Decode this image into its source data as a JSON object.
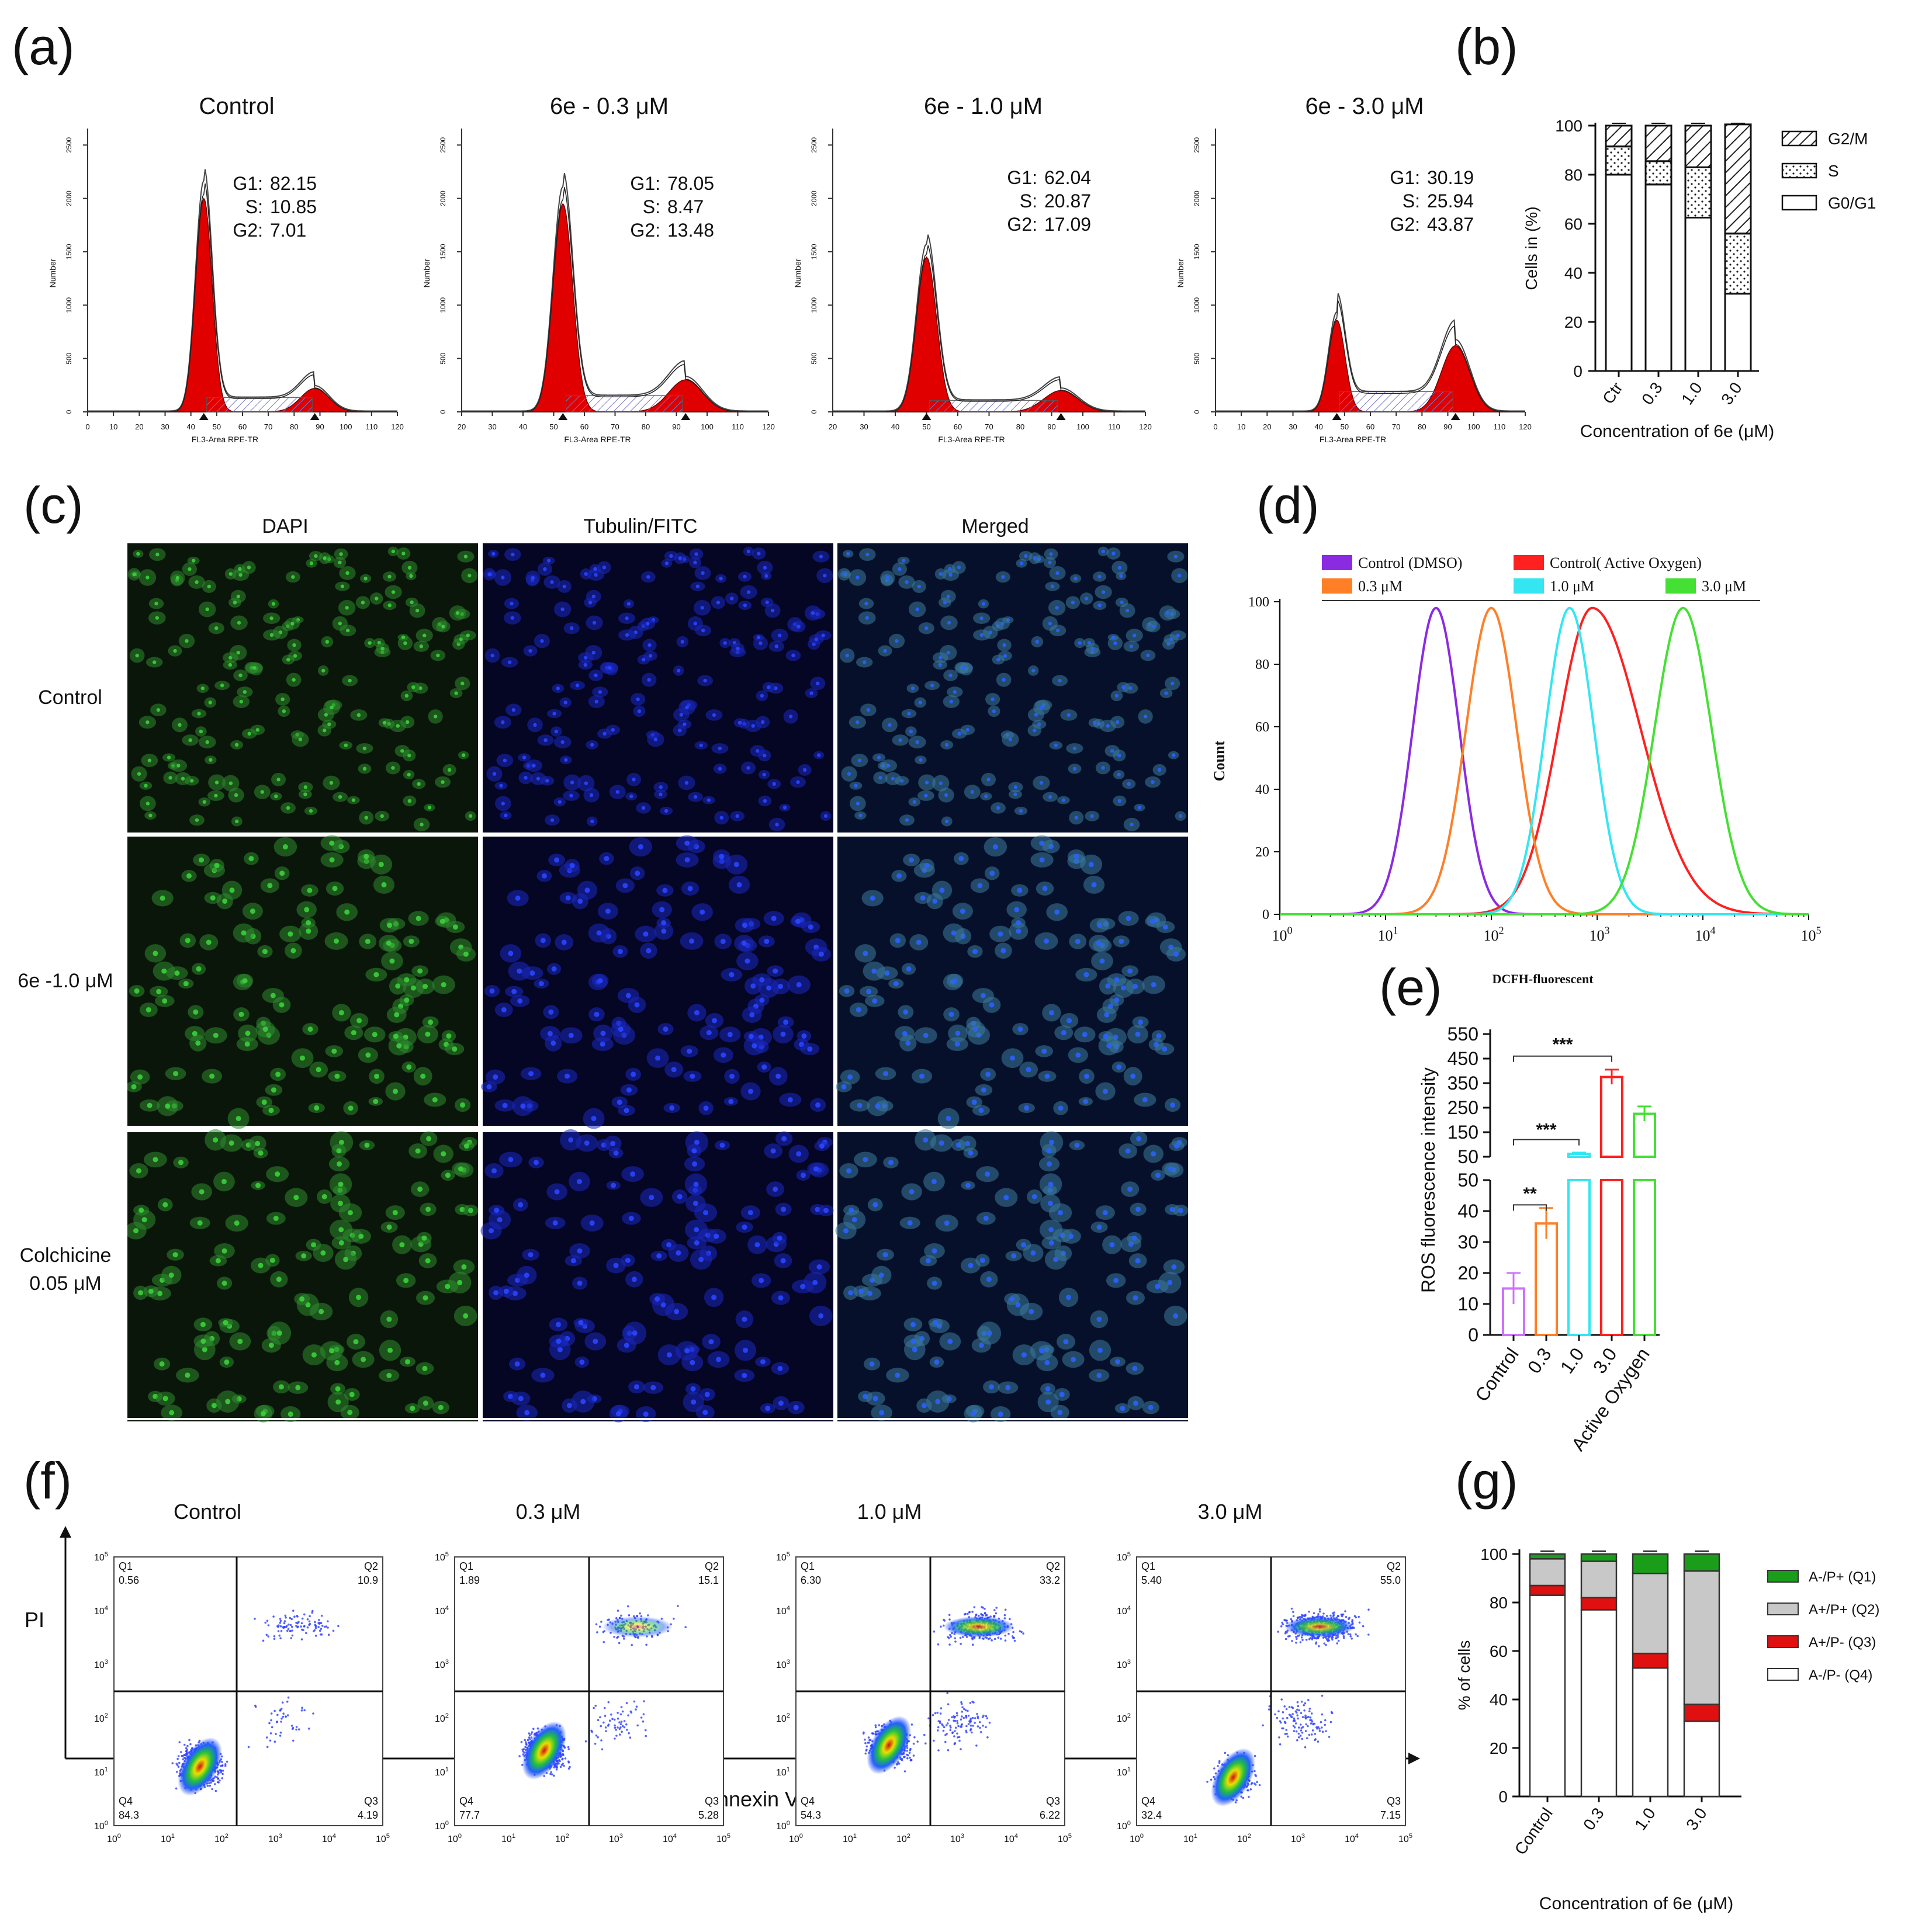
{
  "panel_labels": {
    "a": "(a)",
    "b": "(b)",
    "c": "(c)",
    "d": "(d)",
    "e": "(e)",
    "f": "(f)",
    "g": "(g)"
  },
  "colors": {
    "histogram_fill": "#e00000",
    "dmso": "#8a2be2",
    "active_oxygen": "#ff2020",
    "c03": "#ff7f27",
    "c10": "#33e6f2",
    "c30": "#44e033",
    "micro_green_bg": "#0b160b",
    "micro_blue_bg": "#050524",
    "micro_merged_bg": "#07102a",
    "legend_q1": "#1a9e1a",
    "legend_q2": "#c8c8c8",
    "legend_q3": "#e01010",
    "legend_q4": "#ffffff"
  },
  "chart_data": [
    {
      "id": "a",
      "type": "histogram",
      "xlabel": "FL3-Area RPE-TR",
      "ylabel": "Number",
      "yticks": [
        "0",
        "500",
        "1000",
        "1500",
        "2000",
        "2500"
      ],
      "panels": [
        {
          "title": "Control",
          "xticks": [
            "0",
            "10",
            "20",
            "30",
            "40",
            "50",
            "60",
            "70",
            "80",
            "90",
            "100",
            "110",
            "120"
          ],
          "xlim": [
            0,
            120
          ],
          "g1_peak": 45,
          "g2_peak": 88,
          "g1_height": 2000,
          "g2_height": 220,
          "stats": [
            {
              "label": "G1:",
              "value": "82.15"
            },
            {
              "label": "S:",
              "value": "10.85"
            },
            {
              "label": "G2:",
              "value": "7.01"
            }
          ]
        },
        {
          "title": "6e - 0.3 μM",
          "xticks": [
            "20",
            "30",
            "40",
            "50",
            "60",
            "70",
            "80",
            "90",
            "100",
            "110",
            "120"
          ],
          "xlim": [
            20,
            120
          ],
          "g1_peak": 53,
          "g2_peak": 93,
          "g1_height": 1950,
          "g2_height": 300,
          "stats": [
            {
              "label": "G1:",
              "value": "78.05"
            },
            {
              "label": "S:",
              "value": "8.47"
            },
            {
              "label": "G2:",
              "value": "13.48"
            }
          ]
        },
        {
          "title": "6e - 1.0 μM",
          "xticks": [
            "20",
            "30",
            "40",
            "50",
            "60",
            "70",
            "80",
            "90",
            "100",
            "110",
            "120"
          ],
          "xlim": [
            20,
            120
          ],
          "g1_peak": 50,
          "g2_peak": 93,
          "g1_height": 1450,
          "g2_height": 200,
          "stats": [
            {
              "label": "G1:",
              "value": "62.04"
            },
            {
              "label": "S:",
              "value": "20.87"
            },
            {
              "label": "G2:",
              "value": "17.09"
            }
          ]
        },
        {
          "title": "6e - 3.0 μM",
          "xticks": [
            "0",
            "10",
            "20",
            "30",
            "40",
            "50",
            "60",
            "70",
            "80",
            "90",
            "100",
            "110",
            "120"
          ],
          "xlim": [
            0,
            120
          ],
          "g1_peak": 47,
          "g2_peak": 93,
          "g1_height": 860,
          "g2_height": 620,
          "stats": [
            {
              "label": "G1:",
              "value": "30.19"
            },
            {
              "label": "S:",
              "value": "25.94"
            },
            {
              "label": "G2:",
              "value": "43.87"
            }
          ]
        }
      ]
    },
    {
      "id": "b",
      "type": "bar",
      "stacked": true,
      "categories": [
        "Ctr",
        "0.3",
        "1.0",
        "3.0"
      ],
      "series": [
        {
          "name": "G0/G1",
          "values": [
            80.0,
            76.0,
            62.5,
            31.5
          ]
        },
        {
          "name": "S",
          "values": [
            11.5,
            9.5,
            20.5,
            24.5
          ]
        },
        {
          "name": "G2/M",
          "values": [
            8.5,
            14.5,
            17.0,
            44.5
          ]
        }
      ],
      "legend": [
        "G2/M",
        "S",
        "G0/G1"
      ],
      "xlabel": "Concentration of 6e (μM)",
      "ylabel": "Cells in (%)",
      "ylim": [
        0,
        100
      ],
      "yticks": [
        "0",
        "20",
        "40",
        "60",
        "80",
        "100"
      ]
    },
    {
      "id": "d",
      "type": "line",
      "xscale": "log",
      "xlabel": "DCFH-fluorescent",
      "ylabel": "Count",
      "xticks": [
        "10^0",
        "10^1",
        "10^2",
        "10^3",
        "10^4",
        "10^5"
      ],
      "yticks": [
        "0",
        "20",
        "40",
        "60",
        "80",
        "100"
      ],
      "ylim": [
        0,
        100
      ],
      "series": [
        {
          "name": "Control (DMSO)",
          "center": 30,
          "width": 0.22
        },
        {
          "name": "Control( Active Oxygen)",
          "center": 900,
          "width": 0.32
        },
        {
          "name": "0.3 μM",
          "center": 100,
          "width": 0.24
        },
        {
          "name": "1.0 μM",
          "center": 550,
          "width": 0.23
        },
        {
          "name": "3.0 μM",
          "center": 6500,
          "width": 0.27
        }
      ]
    },
    {
      "id": "e",
      "type": "bar",
      "broken_axis": true,
      "categories": [
        "Control",
        "0.3",
        "1.0",
        "3.0",
        "Active Oxygen"
      ],
      "values": [
        15,
        36,
        62,
        375,
        225
      ],
      "errors": [
        5,
        5,
        5,
        30,
        30
      ],
      "ylabel": "ROS  fluorescence intensity",
      "yticks_lower": [
        "0",
        "10",
        "20",
        "30",
        "40",
        "50"
      ],
      "yticks_upper": [
        "50",
        "150",
        "250",
        "350",
        "450",
        "550"
      ],
      "significance": [
        {
          "from": "Control",
          "to": "0.3",
          "label": "**"
        },
        {
          "from": "Control",
          "to": "1.0",
          "label": "***"
        },
        {
          "from": "Control",
          "to": "3.0",
          "label": "***"
        }
      ]
    },
    {
      "id": "f",
      "type": "scatter",
      "xlabel": "Annexin  V",
      "ylabel": "PI",
      "axis_ticks": [
        "10^0",
        "10^1",
        "10^2",
        "10^3",
        "10^4",
        "10^5"
      ],
      "panels": [
        {
          "title": "Control",
          "Q1": "0.56",
          "Q2": "10.9",
          "Q3": "4.19",
          "Q4": "84.3"
        },
        {
          "title": "0.3 μM",
          "Q1": "1.89",
          "Q2": "15.1",
          "Q3": "5.28",
          "Q4": "77.7"
        },
        {
          "title": "1.0 μM",
          "Q1": "6.30",
          "Q2": "33.2",
          "Q3": "6.22",
          "Q4": "54.3"
        },
        {
          "title": "3.0 μM",
          "Q1": "5.40",
          "Q2": "55.0",
          "Q3": "7.15",
          "Q4": "32.4"
        }
      ]
    },
    {
      "id": "g",
      "type": "bar",
      "stacked": true,
      "categories": [
        "Control",
        "0.3",
        "1.0",
        "3.0"
      ],
      "series": [
        {
          "name": "A-/P-  (Q4)",
          "values": [
            83,
            77,
            53,
            31
          ]
        },
        {
          "name": "A+/P-  (Q3)",
          "values": [
            4,
            5,
            6,
            7
          ]
        },
        {
          "name": "A+/P+  (Q2)",
          "values": [
            11,
            15,
            33,
            55
          ]
        },
        {
          "name": "A-/P+  (Q1)",
          "values": [
            2,
            3,
            8,
            7
          ]
        }
      ],
      "legend": [
        "A-/P+  (Q1)",
        "A+/P+  (Q2)",
        "A+/P-  (Q3)",
        "A-/P-  (Q4)"
      ],
      "xlabel": "Concentration of 6e (μM)",
      "ylabel": "% of cells",
      "ylim": [
        0,
        100
      ],
      "yticks": [
        "0",
        "20",
        "40",
        "60",
        "80",
        "100"
      ]
    }
  ],
  "micrographs": {
    "columns": [
      "DAPI",
      "Tubulin/FITC",
      "Merged"
    ],
    "rows": [
      "Control",
      "6e -1.0 μM",
      "Colchicine",
      "0.05 μM"
    ]
  }
}
